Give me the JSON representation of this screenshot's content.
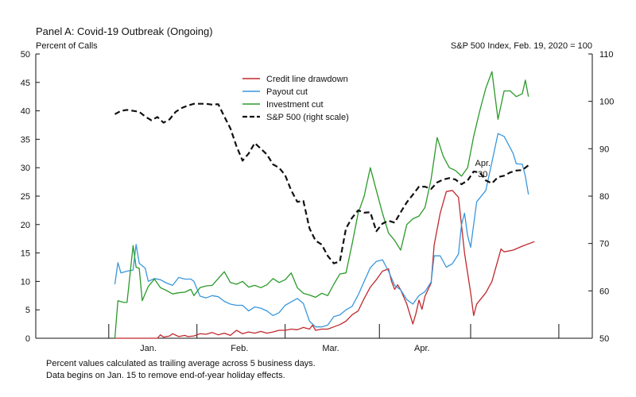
{
  "chart_data": {
    "type": "line",
    "title": "Panel A: Covid-19 Outbreak (Ongoing)",
    "ylabel_left": "Percent of Calls",
    "ylabel_right": "S&P 500 Index, Feb. 19, 2020 = 100",
    "ylim_left": [
      0,
      50
    ],
    "ylim_right": [
      50,
      110
    ],
    "yticks_left": [
      "0",
      "5",
      "10",
      "15",
      "20",
      "25",
      "30",
      "35",
      "40",
      "45",
      "50"
    ],
    "yticks_right": [
      "50",
      "60",
      "70",
      "80",
      "90",
      "100",
      "110"
    ],
    "x_month_labels": [
      {
        "label": "Jan.",
        "center": 10
      },
      {
        "label": "Feb.",
        "center": 40
      },
      {
        "label": "Mar.",
        "center": 70
      },
      {
        "label": "Apr.",
        "center": 100
      }
    ],
    "x_tick_positions": [
      -3,
      26,
      55,
      86,
      116,
      145
    ],
    "xlim": [
      -27,
      156
    ],
    "grid": false,
    "legend_position": "top-center",
    "annotation": {
      "lines": [
        "Apr.",
        "30"
      ],
      "x": 120
    },
    "notes": [
      "Percent values calculated as trailing average across 5 business days.",
      "Data begins on Jan. 15 to remove end-of-year holiday effects."
    ],
    "series": [
      {
        "name": "Credit line drawdown",
        "color": "#c0282d",
        "axis": "left",
        "dash": "solid",
        "points": [
          [
            -1,
            0
          ],
          [
            5,
            0
          ],
          [
            10,
            0
          ],
          [
            12,
            0
          ],
          [
            13,
            0
          ],
          [
            14,
            0.6
          ],
          [
            15,
            0.2
          ],
          [
            17,
            0.4
          ],
          [
            18,
            0.8
          ],
          [
            20,
            0.3
          ],
          [
            22,
            0.5
          ],
          [
            23,
            0.3
          ],
          [
            25,
            0.4
          ],
          [
            27,
            0.8
          ],
          [
            29,
            0.7
          ],
          [
            31,
            1.0
          ],
          [
            33,
            0.6
          ],
          [
            35,
            0.9
          ],
          [
            37,
            0.5
          ],
          [
            39,
            1.4
          ],
          [
            41,
            0.8
          ],
          [
            43,
            1.1
          ],
          [
            45,
            0.9
          ],
          [
            47,
            1.2
          ],
          [
            49,
            0.9
          ],
          [
            51,
            1.1
          ],
          [
            53,
            1.4
          ],
          [
            55,
            1.4
          ],
          [
            57,
            1.6
          ],
          [
            59,
            1.5
          ],
          [
            61,
            1.9
          ],
          [
            63,
            1.6
          ],
          [
            64,
            2.3
          ],
          [
            65,
            1.4
          ],
          [
            67,
            1.6
          ],
          [
            69,
            1.6
          ],
          [
            71,
            2.0
          ],
          [
            73,
            2.4
          ],
          [
            75,
            3.0
          ],
          [
            77,
            4.1
          ],
          [
            79,
            4.8
          ],
          [
            81,
            7.0
          ],
          [
            83,
            9.0
          ],
          [
            85,
            10.3
          ],
          [
            87,
            11.8
          ],
          [
            89,
            12.2
          ],
          [
            90,
            10.0
          ],
          [
            91,
            8.6
          ],
          [
            92,
            9.4
          ],
          [
            93,
            8.5
          ],
          [
            95,
            6.0
          ],
          [
            97,
            2.5
          ],
          [
            98,
            4.3
          ],
          [
            99,
            6.7
          ],
          [
            100,
            5.1
          ],
          [
            101,
            7.4
          ],
          [
            103,
            9.7
          ],
          [
            104,
            16.4
          ],
          [
            106,
            22.0
          ],
          [
            108,
            25.8
          ],
          [
            110,
            26.0
          ],
          [
            112,
            24.8
          ],
          [
            114,
            15.0
          ],
          [
            116,
            8.0
          ],
          [
            117,
            4.0
          ],
          [
            118,
            6.0
          ],
          [
            121,
            8.0
          ],
          [
            123,
            10.0
          ],
          [
            126,
            15.7
          ],
          [
            127,
            15.2
          ],
          [
            130,
            15.5
          ],
          [
            133,
            16.2
          ],
          [
            137,
            17.0
          ]
        ]
      },
      {
        "name": "Payout cut",
        "color": "#3a97dd",
        "axis": "left",
        "dash": "solid",
        "points": [
          [
            -1,
            9.5
          ],
          [
            0,
            13.3
          ],
          [
            1,
            11.5
          ],
          [
            3,
            11.8
          ],
          [
            5,
            12.0
          ],
          [
            6,
            16.5
          ],
          [
            7,
            13.2
          ],
          [
            9,
            12.3
          ],
          [
            10,
            10.0
          ],
          [
            12,
            10.5
          ],
          [
            14,
            10.3
          ],
          [
            16,
            9.7
          ],
          [
            18,
            9.3
          ],
          [
            20,
            10.7
          ],
          [
            22,
            10.4
          ],
          [
            24,
            10.4
          ],
          [
            25,
            10.0
          ],
          [
            27,
            7.4
          ],
          [
            29,
            7.1
          ],
          [
            31,
            7.5
          ],
          [
            33,
            7.3
          ],
          [
            35,
            6.5
          ],
          [
            37,
            6.0
          ],
          [
            39,
            5.8
          ],
          [
            41,
            5.8
          ],
          [
            43,
            4.8
          ],
          [
            45,
            5.5
          ],
          [
            47,
            5.3
          ],
          [
            49,
            4.8
          ],
          [
            51,
            4.0
          ],
          [
            53,
            4.5
          ],
          [
            55,
            5.8
          ],
          [
            57,
            6.4
          ],
          [
            59,
            7.0
          ],
          [
            61,
            6.1
          ],
          [
            63,
            3.0
          ],
          [
            65,
            2.0
          ],
          [
            67,
            2.0
          ],
          [
            69,
            2.3
          ],
          [
            71,
            3.8
          ],
          [
            73,
            4.1
          ],
          [
            75,
            5.0
          ],
          [
            77,
            5.6
          ],
          [
            79,
            7.6
          ],
          [
            81,
            10.0
          ],
          [
            83,
            12.4
          ],
          [
            85,
            13.5
          ],
          [
            87,
            13.8
          ],
          [
            89,
            11.8
          ],
          [
            91,
            9.3
          ],
          [
            93,
            8.5
          ],
          [
            95,
            6.8
          ],
          [
            97,
            6.0
          ],
          [
            99,
            7.5
          ],
          [
            101,
            8.2
          ],
          [
            103,
            9.9
          ],
          [
            104,
            14.5
          ],
          [
            106,
            14.5
          ],
          [
            108,
            12.5
          ],
          [
            110,
            13.1
          ],
          [
            112,
            14.8
          ],
          [
            113,
            20.0
          ],
          [
            114,
            22.0
          ],
          [
            115,
            18.0
          ],
          [
            116,
            16.0
          ],
          [
            118,
            24.0
          ],
          [
            121,
            26.0
          ],
          [
            123,
            31.0
          ],
          [
            125,
            36.0
          ],
          [
            127,
            35.5
          ],
          [
            130,
            32.5
          ],
          [
            131,
            30.7
          ],
          [
            133,
            30.6
          ],
          [
            134,
            28.5
          ],
          [
            135,
            25.3
          ]
        ]
      },
      {
        "name": "Investment cut",
        "color": "#2a9a2a",
        "axis": "left",
        "dash": "solid",
        "points": [
          [
            -1,
            0
          ],
          [
            0,
            6.6
          ],
          [
            2,
            6.3
          ],
          [
            3,
            6.3
          ],
          [
            5,
            16.3
          ],
          [
            6,
            12.5
          ],
          [
            7,
            12.3
          ],
          [
            8,
            6.6
          ],
          [
            10,
            9.1
          ],
          [
            12,
            10.4
          ],
          [
            14,
            8.9
          ],
          [
            16,
            8.4
          ],
          [
            18,
            7.8
          ],
          [
            20,
            8.0
          ],
          [
            22,
            8.1
          ],
          [
            24,
            8.6
          ],
          [
            25,
            7.5
          ],
          [
            27,
            8.9
          ],
          [
            29,
            9.2
          ],
          [
            31,
            9.3
          ],
          [
            33,
            10.5
          ],
          [
            35,
            11.7
          ],
          [
            37,
            9.8
          ],
          [
            39,
            9.5
          ],
          [
            41,
            10.0
          ],
          [
            43,
            9.0
          ],
          [
            45,
            9.3
          ],
          [
            47,
            8.9
          ],
          [
            49,
            9.4
          ],
          [
            51,
            10.5
          ],
          [
            53,
            9.8
          ],
          [
            55,
            10.3
          ],
          [
            57,
            11.5
          ],
          [
            59,
            8.9
          ],
          [
            61,
            7.9
          ],
          [
            63,
            7.6
          ],
          [
            65,
            7.2
          ],
          [
            67,
            7.9
          ],
          [
            69,
            7.5
          ],
          [
            71,
            9.5
          ],
          [
            73,
            11.3
          ],
          [
            75,
            11.5
          ],
          [
            77,
            16.5
          ],
          [
            79,
            22.0
          ],
          [
            81,
            25.0
          ],
          [
            83,
            30.0
          ],
          [
            85,
            26.0
          ],
          [
            87,
            22.0
          ],
          [
            89,
            18.5
          ],
          [
            91,
            17.2
          ],
          [
            93,
            15.5
          ],
          [
            95,
            20.0
          ],
          [
            97,
            21.0
          ],
          [
            99,
            21.5
          ],
          [
            101,
            23.0
          ],
          [
            103,
            28.0
          ],
          [
            105,
            35.3
          ],
          [
            107,
            32.0
          ],
          [
            109,
            30.0
          ],
          [
            111,
            29.5
          ],
          [
            113,
            28.5
          ],
          [
            115,
            30.0
          ],
          [
            117,
            35.5
          ],
          [
            119,
            40.0
          ],
          [
            121,
            44.0
          ],
          [
            123,
            46.9
          ],
          [
            125,
            38.5
          ],
          [
            127,
            43.5
          ],
          [
            129,
            43.5
          ],
          [
            131,
            42.5
          ],
          [
            133,
            43.0
          ],
          [
            134,
            45.4
          ],
          [
            135,
            42.5
          ]
        ]
      },
      {
        "name": "S&P 500 (right scale)",
        "color": "#111111",
        "axis": "right",
        "dash": "dashed",
        "points": [
          [
            -1,
            97.3
          ],
          [
            1,
            98.0
          ],
          [
            3,
            98.2
          ],
          [
            5,
            98.0
          ],
          [
            7,
            97.8
          ],
          [
            9,
            96.8
          ],
          [
            11,
            96.0
          ],
          [
            13,
            96.7
          ],
          [
            15,
            95.5
          ],
          [
            17,
            96.2
          ],
          [
            19,
            97.8
          ],
          [
            21,
            98.6
          ],
          [
            23,
            99.1
          ],
          [
            25,
            99.5
          ],
          [
            27,
            99.5
          ],
          [
            29,
            99.5
          ],
          [
            31,
            99.3
          ],
          [
            33,
            99.4
          ],
          [
            35,
            96.8
          ],
          [
            37,
            94.3
          ],
          [
            39,
            90.5
          ],
          [
            41,
            87.5
          ],
          [
            43,
            89.0
          ],
          [
            45,
            91.2
          ],
          [
            47,
            90.0
          ],
          [
            49,
            88.8
          ],
          [
            51,
            86.7
          ],
          [
            53,
            86.0
          ],
          [
            55,
            84.4
          ],
          [
            57,
            81.2
          ],
          [
            59,
            78.8
          ],
          [
            61,
            79.0
          ],
          [
            63,
            73.2
          ],
          [
            65,
            70.6
          ],
          [
            67,
            69.8
          ],
          [
            69,
            67.4
          ],
          [
            71,
            65.8
          ],
          [
            73,
            66.2
          ],
          [
            75,
            73.2
          ],
          [
            77,
            75.4
          ],
          [
            79,
            77.0
          ],
          [
            81,
            76.5
          ],
          [
            83,
            76.6
          ],
          [
            85,
            72.6
          ],
          [
            87,
            74.2
          ],
          [
            89,
            74.8
          ],
          [
            91,
            74.4
          ],
          [
            93,
            76.6
          ],
          [
            95,
            78.7
          ],
          [
            97,
            80.3
          ],
          [
            99,
            82.0
          ],
          [
            101,
            82.0
          ],
          [
            103,
            81.5
          ],
          [
            105,
            82.9
          ],
          [
            107,
            83.5
          ],
          [
            109,
            83.8
          ],
          [
            111,
            83.5
          ],
          [
            113,
            82.5
          ],
          [
            115,
            83.3
          ],
          [
            117,
            85.2
          ],
          [
            119,
            85.0
          ],
          [
            121,
            83.3
          ],
          [
            123,
            82.7
          ],
          [
            125,
            84.0
          ],
          [
            127,
            84.3
          ],
          [
            129,
            85.0
          ],
          [
            131,
            85.4
          ],
          [
            133,
            85.5
          ],
          [
            135,
            86.5
          ]
        ]
      }
    ]
  }
}
